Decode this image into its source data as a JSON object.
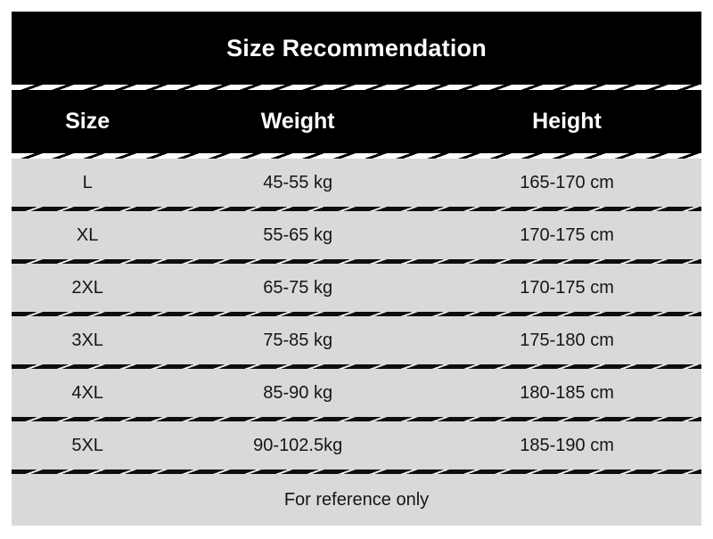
{
  "chart_data": {
    "type": "table",
    "title": "Size Recommendation",
    "columns": [
      "Size",
      "Weight",
      "Height"
    ],
    "rows": [
      [
        "L",
        "45-55 kg",
        "165-170 cm"
      ],
      [
        "XL",
        "55-65 kg",
        "170-175 cm"
      ],
      [
        "2XL",
        "65-75 kg",
        "170-175 cm"
      ],
      [
        "3XL",
        "75-85 kg",
        "175-180 cm"
      ],
      [
        "4XL",
        "85-90 kg",
        "180-185 cm"
      ],
      [
        "5XL",
        "90-102.5kg",
        "185-190 cm"
      ]
    ],
    "footnote": "For reference only",
    "layout": {
      "header_bg": "#000000",
      "header_text_color": "#ffffff",
      "row_bg": "#d9d9d9",
      "row_text_color": "#151515",
      "divider_style": "hand-drawn diagonal hatch"
    }
  }
}
